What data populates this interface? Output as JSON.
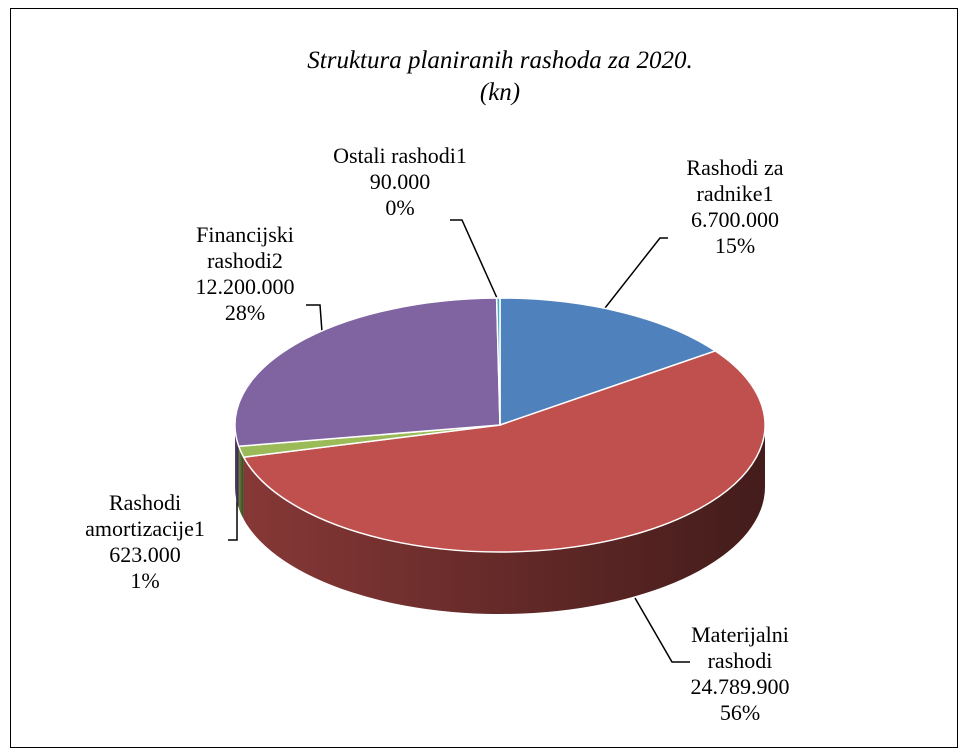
{
  "chart_data": {
    "type": "pie",
    "title": "Struktura planiranih rashoda za 2020. (kn)",
    "categories": [
      "Rashodi za radnike1",
      "Materijalni rashodi",
      "Rashodi amortizacije1",
      "Financijski rashodi2",
      "Ostali rashodi1"
    ],
    "values": [
      6700000,
      24789900,
      623000,
      12200000,
      90000
    ],
    "value_labels": [
      "6.700.000",
      "24.789.900",
      "623.000",
      "12.200.000",
      "90.000"
    ],
    "percent_labels": [
      "15%",
      "56%",
      "1%",
      "28%",
      "0%"
    ],
    "colors": [
      "#4f81bd",
      "#c0504d",
      "#9bbb59",
      "#8064a2",
      "#4bacc6"
    ]
  }
}
